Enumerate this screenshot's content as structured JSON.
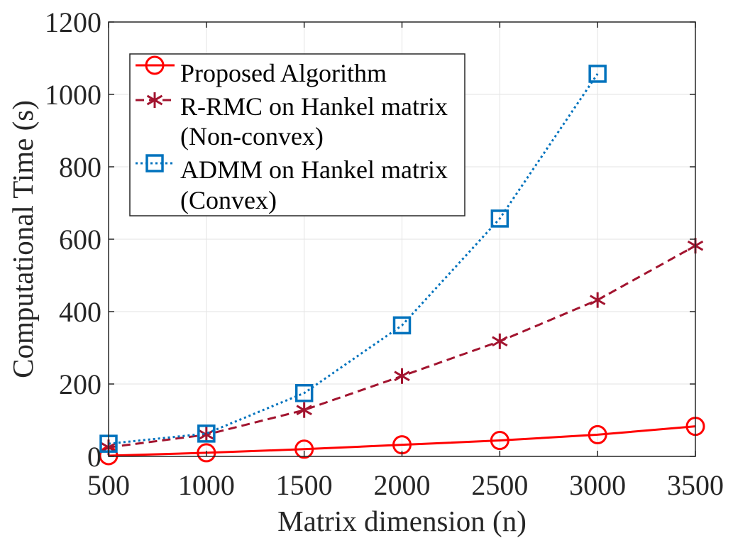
{
  "chart_data": {
    "type": "line",
    "title": "",
    "xlabel": "Matrix dimension (n)",
    "ylabel": "Computational Time (s)",
    "xlim": [
      500,
      3500
    ],
    "ylim": [
      0,
      1200
    ],
    "xticks": [
      "500",
      "1000",
      "1500",
      "2000",
      "2500",
      "3000",
      "3500"
    ],
    "yticks": [
      "0",
      "200",
      "400",
      "600",
      "800",
      "1000",
      "1200"
    ],
    "grid": true,
    "legend_position": "top-left",
    "series": [
      {
        "name_lines": [
          "Proposed Algorithm"
        ],
        "color": "#ff0000",
        "line_style": "solid",
        "marker": "circle",
        "x": [
          500,
          1000,
          1500,
          2000,
          2500,
          3000,
          3500
        ],
        "y": [
          2,
          10,
          20,
          32,
          44,
          60,
          83
        ]
      },
      {
        "name_lines": [
          "R-RMC on Hankel matrix",
          "(Non-convex)"
        ],
        "color": "#a2142f",
        "line_style": "dashed",
        "marker": "asterisk",
        "x": [
          500,
          1000,
          1500,
          2000,
          2500,
          3000,
          3500
        ],
        "y": [
          25,
          60,
          128,
          222,
          318,
          432,
          582
        ]
      },
      {
        "name_lines": [
          "ADMM on Hankel matrix",
          "(Convex)"
        ],
        "color": "#0072bd",
        "line_style": "dotted",
        "marker": "square",
        "x": [
          500,
          1000,
          1500,
          2000,
          2500,
          3000
        ],
        "y": [
          35,
          63,
          175,
          362,
          657,
          1057
        ]
      }
    ]
  }
}
